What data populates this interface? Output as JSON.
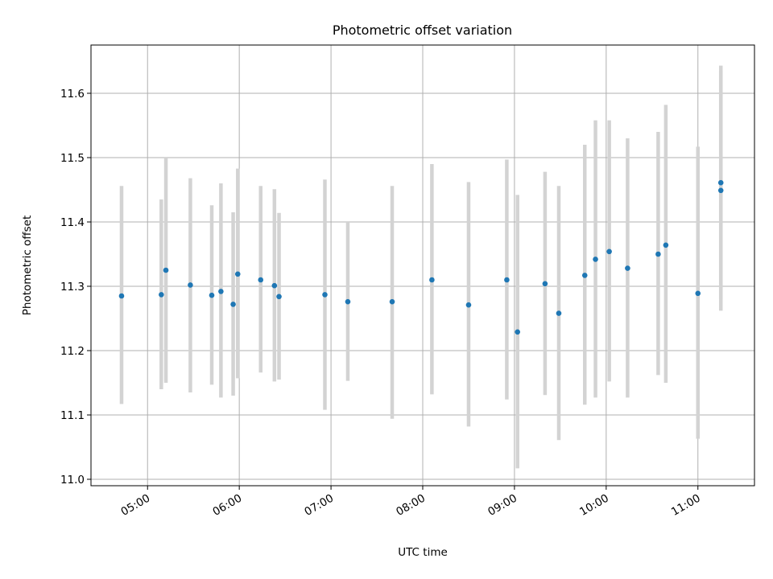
{
  "chart_data": {
    "type": "scatter",
    "title": "Photometric offset variation",
    "xlabel": "UTC time",
    "ylabel": "Photometric offset",
    "xlim": [
      "04:23",
      "11:37"
    ],
    "ylim": [
      10.99,
      11.675
    ],
    "x_ticks": [
      "05:00",
      "06:00",
      "07:00",
      "08:00",
      "09:00",
      "10:00",
      "11:00"
    ],
    "y_ticks": [
      "11.0",
      "11.1",
      "11.2",
      "11.3",
      "11.4",
      "11.5",
      "11.6"
    ],
    "grid": true,
    "legend": "none",
    "colors": {
      "points": "#1f77b4",
      "error_bars": "#d3d3d3",
      "grid": "#b0b0b0",
      "axes": "#000000"
    },
    "points": [
      {
        "x": "04:43",
        "y": 11.285,
        "err": [
          11.117,
          11.456
        ]
      },
      {
        "x": "05:09",
        "y": 11.287,
        "err": [
          11.14,
          11.435
        ]
      },
      {
        "x": "05:12",
        "y": 11.325,
        "err": [
          11.15,
          11.5
        ]
      },
      {
        "x": "05:28",
        "y": 11.302,
        "err": [
          11.135,
          11.468
        ]
      },
      {
        "x": "05:42",
        "y": 11.286,
        "err": [
          11.147,
          11.426
        ]
      },
      {
        "x": "05:48",
        "y": 11.292,
        "err": [
          11.127,
          11.46
        ]
      },
      {
        "x": "05:56",
        "y": 11.272,
        "err": [
          11.13,
          11.415
        ]
      },
      {
        "x": "05:59",
        "y": 11.319,
        "err": [
          11.157,
          11.483
        ]
      },
      {
        "x": "06:14",
        "y": 11.31,
        "err": [
          11.166,
          11.456
        ]
      },
      {
        "x": "06:23",
        "y": 11.301,
        "err": [
          11.152,
          11.451
        ]
      },
      {
        "x": "06:26",
        "y": 11.284,
        "err": [
          11.155,
          11.414
        ]
      },
      {
        "x": "06:56",
        "y": 11.287,
        "err": [
          11.108,
          11.466
        ]
      },
      {
        "x": "07:11",
        "y": 11.276,
        "err": [
          11.153,
          11.4
        ]
      },
      {
        "x": "07:40",
        "y": 11.276,
        "err": [
          11.094,
          11.456
        ]
      },
      {
        "x": "08:06",
        "y": 11.31,
        "err": [
          11.132,
          11.49
        ]
      },
      {
        "x": "08:30",
        "y": 11.271,
        "err": [
          11.082,
          11.462
        ]
      },
      {
        "x": "08:55",
        "y": 11.31,
        "err": [
          11.124,
          11.497
        ]
      },
      {
        "x": "09:02",
        "y": 11.229,
        "err": [
          11.017,
          11.442
        ]
      },
      {
        "x": "09:20",
        "y": 11.304,
        "err": [
          11.131,
          11.478
        ]
      },
      {
        "x": "09:29",
        "y": 11.258,
        "err": [
          11.061,
          11.456
        ]
      },
      {
        "x": "09:46",
        "y": 11.317,
        "err": [
          11.116,
          11.52
        ]
      },
      {
        "x": "09:53",
        "y": 11.342,
        "err": [
          11.127,
          11.558
        ]
      },
      {
        "x": "10:02",
        "y": 11.354,
        "err": [
          11.152,
          11.558
        ]
      },
      {
        "x": "10:14",
        "y": 11.328,
        "err": [
          11.127,
          11.53
        ]
      },
      {
        "x": "10:34",
        "y": 11.35,
        "err": [
          11.162,
          11.54
        ]
      },
      {
        "x": "10:39",
        "y": 11.364,
        "err": [
          11.15,
          11.582
        ]
      },
      {
        "x": "11:00",
        "y": 11.289,
        "err": [
          11.063,
          11.517
        ]
      },
      {
        "x": "11:15",
        "y": 11.449,
        "err": [
          11.262,
          11.635
        ]
      },
      {
        "x": "11:15",
        "y": 11.461,
        "err": [
          11.28,
          11.643
        ]
      }
    ]
  }
}
